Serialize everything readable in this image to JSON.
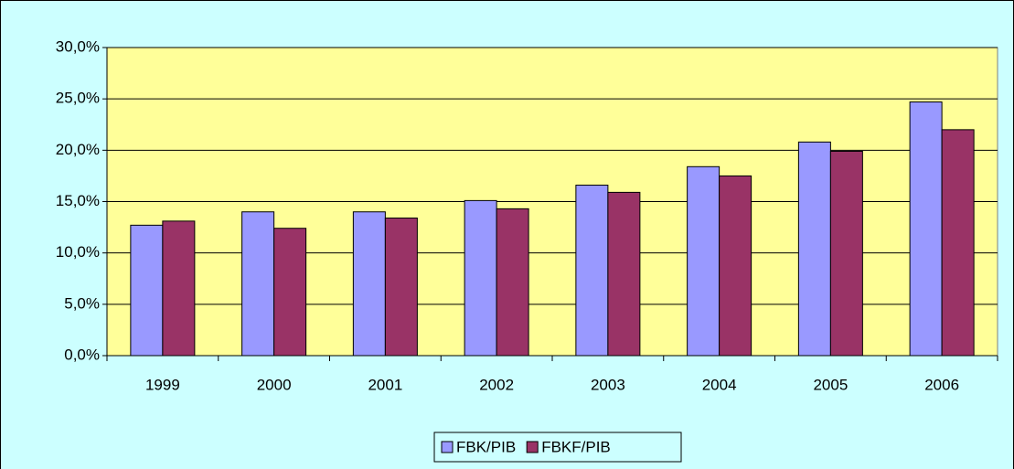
{
  "chart_data": {
    "type": "bar",
    "categories": [
      "1999",
      "2000",
      "2001",
      "2002",
      "2003",
      "2004",
      "2005",
      "2006"
    ],
    "series": [
      {
        "name": "FBK/PIB",
        "color": "#9999ff",
        "values": [
          12.7,
          14.0,
          14.0,
          15.1,
          16.6,
          18.4,
          20.8,
          24.7
        ]
      },
      {
        "name": "FBKF/PIB",
        "color": "#993366",
        "values": [
          13.1,
          12.4,
          13.4,
          14.3,
          15.9,
          17.5,
          19.9,
          22.0
        ]
      }
    ],
    "ylim": [
      0,
      30
    ],
    "yticks": [
      {
        "value": 0,
        "label": "0,0%"
      },
      {
        "value": 5,
        "label": "5,0%"
      },
      {
        "value": 10,
        "label": "10,0%"
      },
      {
        "value": 15,
        "label": "15,0%"
      },
      {
        "value": 20,
        "label": "20,0%"
      },
      {
        "value": 25,
        "label": "25,0%"
      },
      {
        "value": 30,
        "label": "30,0%"
      }
    ],
    "grid": true,
    "legend": "bottom"
  }
}
